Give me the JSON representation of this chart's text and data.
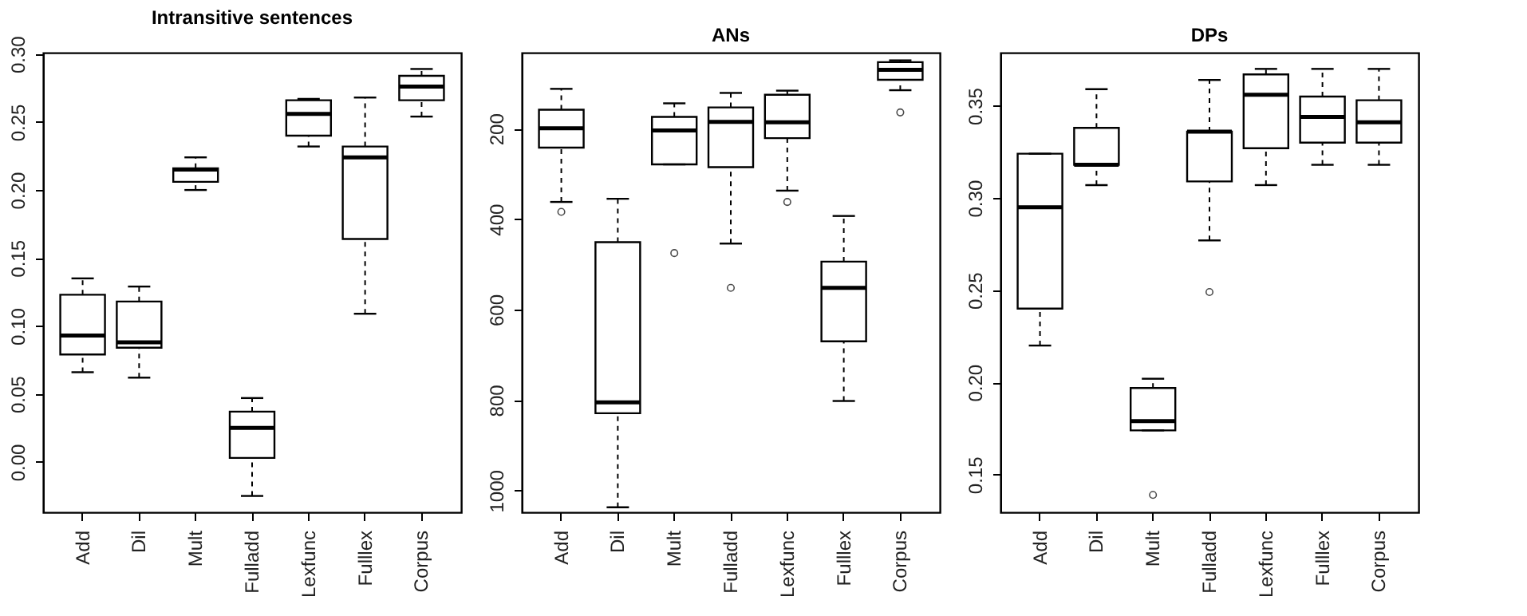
{
  "chart_data": [
    {
      "type": "box",
      "title": "Intransitive sentences",
      "categories": [
        "Add",
        "Dil",
        "Mult",
        "Fulladd",
        "Lexfunc",
        "Fulllex",
        "Corpus"
      ],
      "ylim": [
        -0.037,
        0.301
      ],
      "yticks": [
        {
          "value": 0,
          "label": "0.00"
        },
        0.05,
        {
          "value": 0.1,
          "label": "0.10"
        },
        0.15,
        {
          "value": 0.2,
          "label": "0.20"
        },
        0.25,
        {
          "value": 0.3,
          "label": "0.30"
        }
      ],
      "grid": false,
      "boxes": [
        {
          "low": 0.066,
          "q1": 0.079,
          "median": 0.093,
          "q3": 0.123,
          "high": 0.135
        },
        {
          "low": 0.062,
          "q1": 0.084,
          "median": 0.088,
          "q3": 0.118,
          "high": 0.129
        },
        {
          "low": 0.2,
          "q1": 0.206,
          "median": 0.215,
          "q3": 0.216,
          "high": 0.224
        },
        {
          "low": -0.025,
          "q1": 0.003,
          "median": 0.025,
          "q3": 0.037,
          "high": 0.047
        },
        {
          "low": 0.232,
          "q1": 0.24,
          "median": 0.256,
          "q3": 0.266,
          "high": 0.267
        },
        {
          "low": 0.109,
          "q1": 0.164,
          "median": 0.224,
          "q3": 0.232,
          "high": 0.268
        },
        {
          "low": 0.254,
          "q1": 0.266,
          "median": 0.276,
          "q3": 0.284,
          "high": 0.289
        }
      ]
    },
    {
      "type": "box",
      "title": "ANs",
      "categories": [
        "Add",
        "Dil",
        "Mult",
        "Fulladd",
        "Lexfunc",
        "Fulllex",
        "Corpus"
      ],
      "ylim": [
        1048,
        32
      ],
      "yticks": [
        200,
        400,
        600,
        800,
        {
          "value": 1000,
          "label": "1000"
        }
      ],
      "grid": false,
      "boxes": [
        {
          "low": 362,
          "q1": 242,
          "median": 199,
          "q3": 158,
          "high": 112,
          "outliers": [
            384
          ]
        },
        {
          "low": 1037,
          "q1": 829,
          "median": 805,
          "q3": 451,
          "high": 355
        },
        {
          "low": 279,
          "q1": 279,
          "median": 204,
          "q3": 174,
          "high": 144,
          "outliers": [
            475
          ]
        },
        {
          "low": 454,
          "q1": 285,
          "median": 185,
          "q3": 153,
          "high": 121,
          "outliers": [
            552
          ]
        },
        {
          "low": 337,
          "q1": 221,
          "median": 186,
          "q3": 125,
          "high": 116,
          "outliers": [
            362
          ]
        },
        {
          "low": 802,
          "q1": 670,
          "median": 552,
          "q3": 494,
          "high": 393
        },
        {
          "low": 115,
          "q1": 92,
          "median": 70,
          "q3": 53,
          "high": 49,
          "outliers": [
            164
          ]
        }
      ]
    },
    {
      "type": "box",
      "title": "DPs",
      "categories": [
        "Add",
        "Dil",
        "Mult",
        "Fulladd",
        "Lexfunc",
        "Fulllex",
        "Corpus"
      ],
      "ylim": [
        0.1296,
        0.3788
      ],
      "yticks": [
        0.15,
        {
          "value": 0.2,
          "label": "0.20"
        },
        0.25,
        {
          "value": 0.3,
          "label": "0.30"
        },
        0.35
      ],
      "grid": false,
      "boxes": [
        {
          "low": 0.22,
          "q1": 0.24,
          "median": 0.295,
          "q3": 0.324,
          "high": 0.324
        },
        {
          "low": 0.307,
          "q1": 0.318,
          "median": 0.318,
          "q3": 0.338,
          "high": 0.359
        },
        {
          "low": 0.174,
          "q1": 0.174,
          "median": 0.179,
          "q3": 0.197,
          "high": 0.202,
          "outliers": [
            0.139
          ]
        },
        {
          "low": 0.277,
          "q1": 0.309,
          "median": 0.336,
          "q3": 0.336,
          "high": 0.364,
          "outliers": [
            0.249
          ]
        },
        {
          "low": 0.307,
          "q1": 0.327,
          "median": 0.356,
          "q3": 0.367,
          "high": 0.37
        },
        {
          "low": 0.318,
          "q1": 0.33,
          "median": 0.344,
          "q3": 0.355,
          "high": 0.37
        },
        {
          "low": 0.318,
          "q1": 0.33,
          "median": 0.341,
          "q3": 0.353,
          "high": 0.37
        }
      ]
    }
  ]
}
